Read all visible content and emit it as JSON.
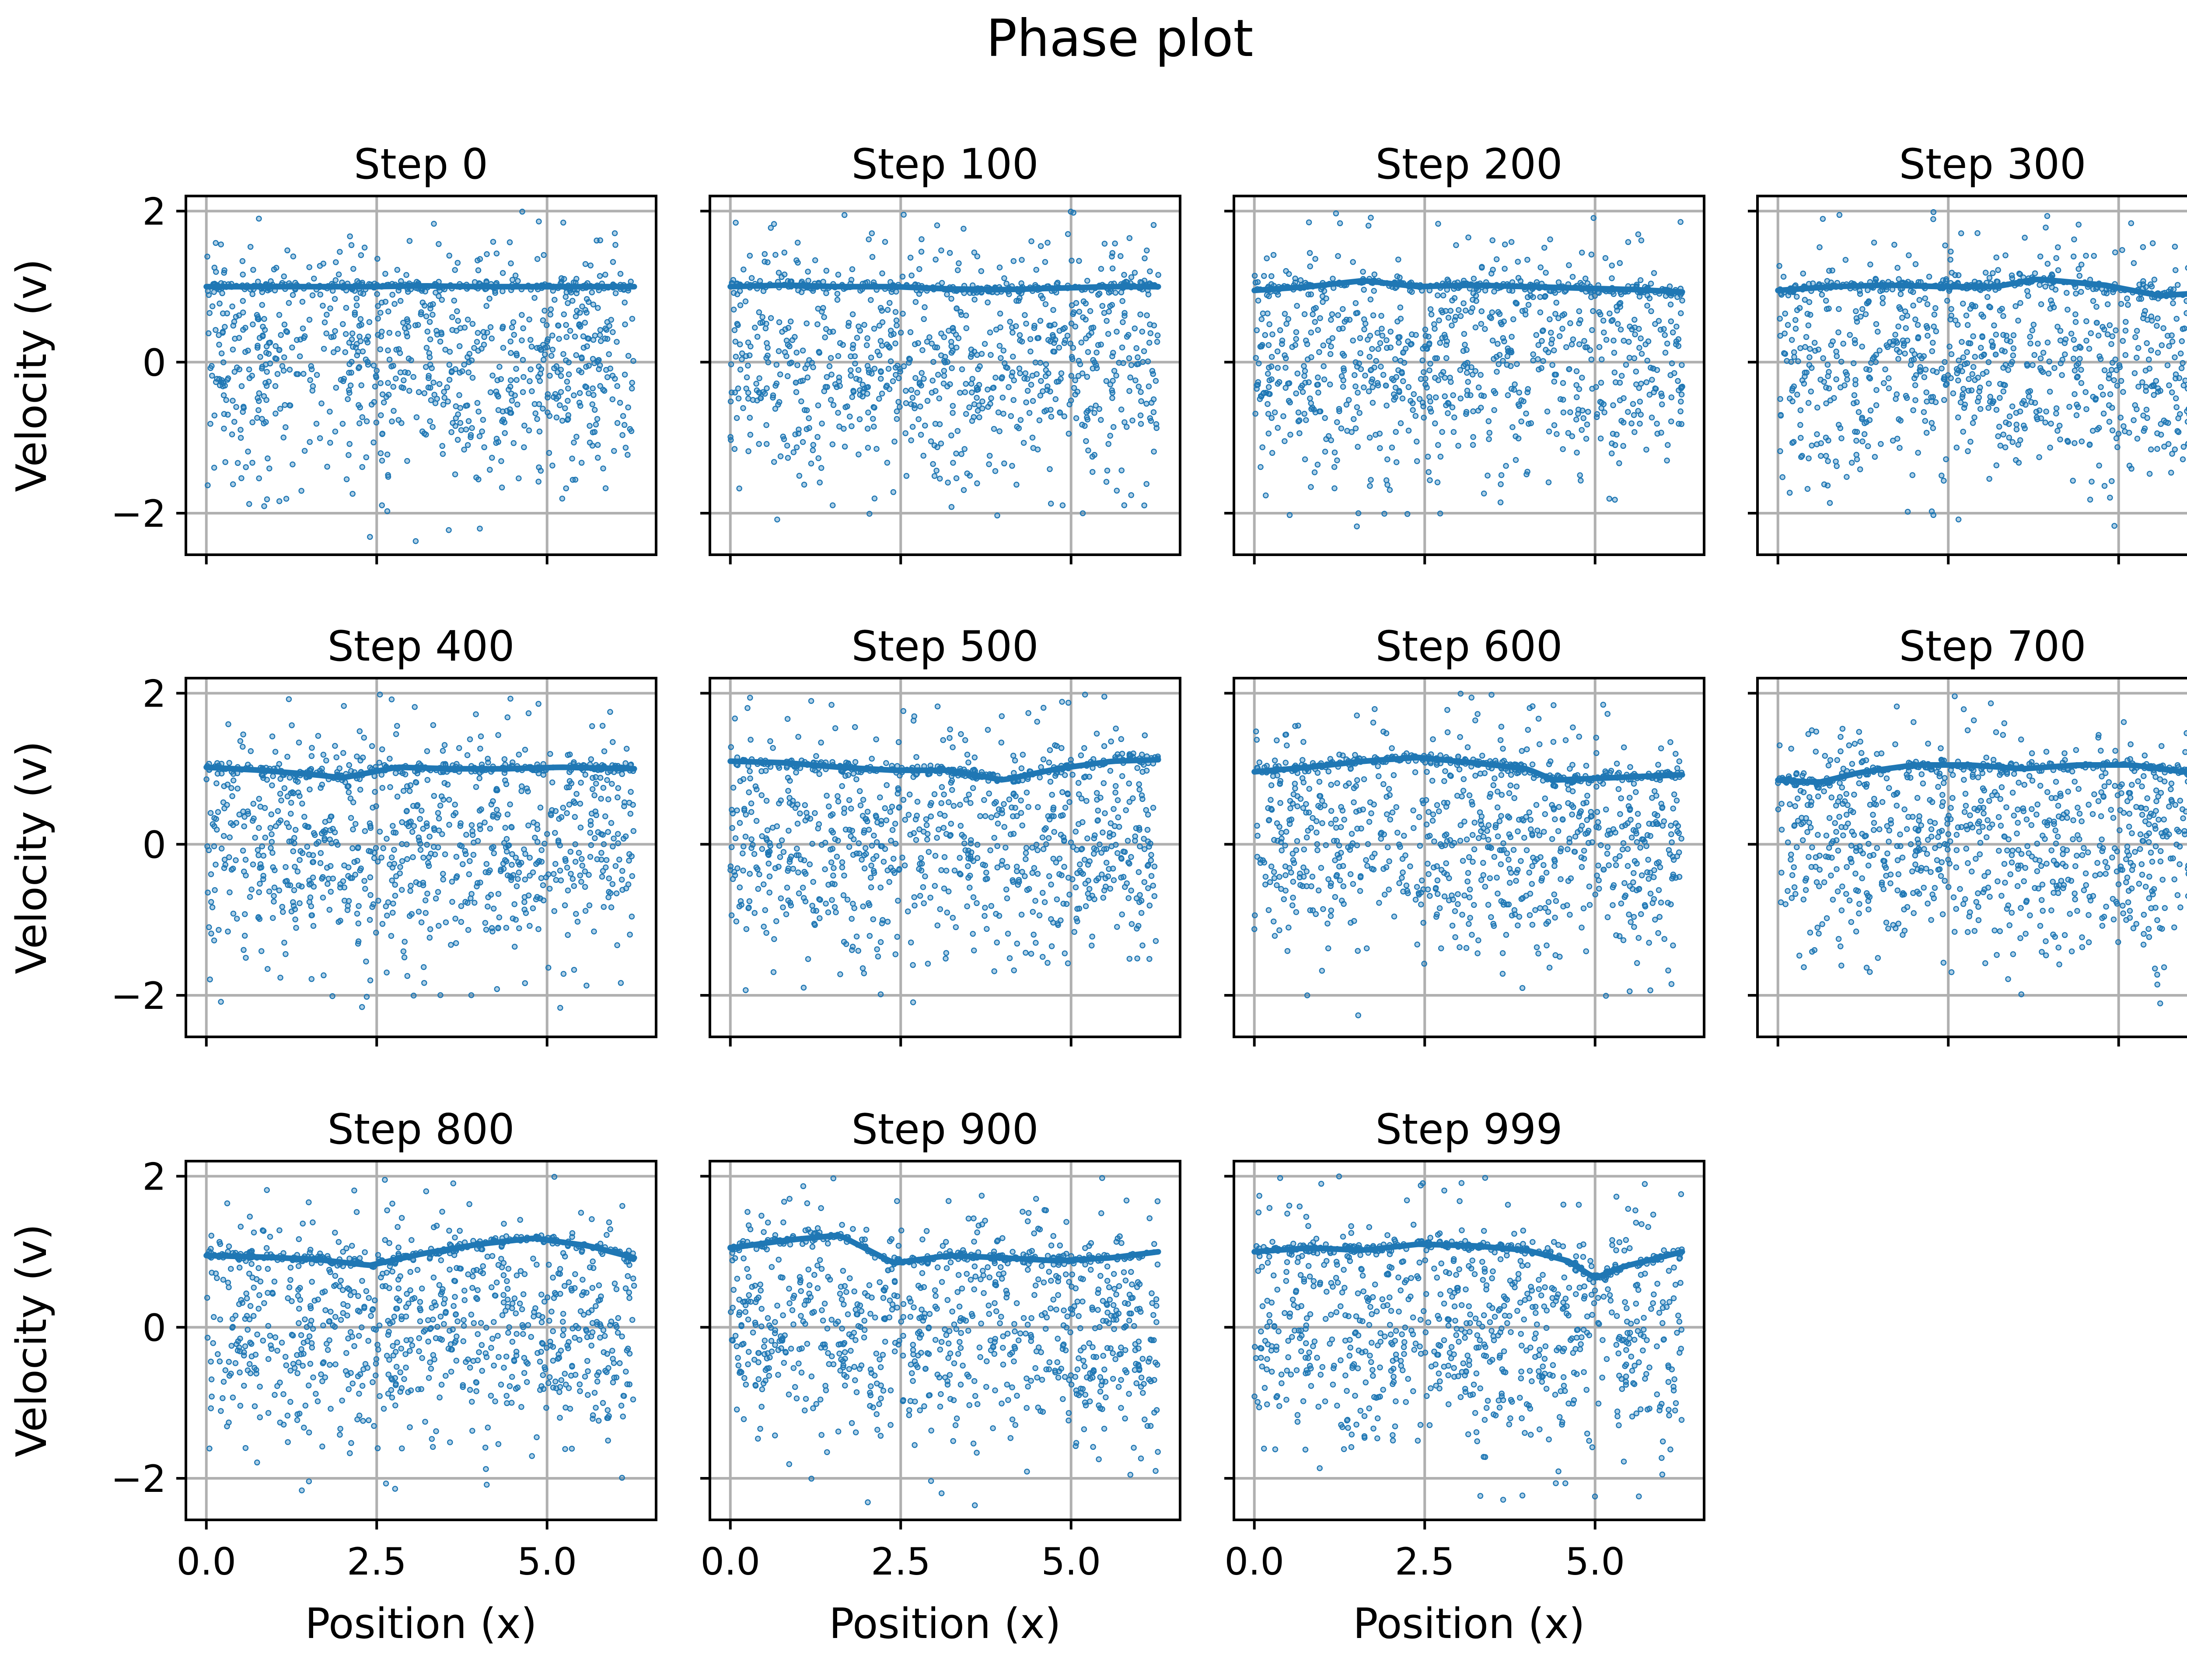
{
  "figure": {
    "title": "Phase plot",
    "colors": {
      "particle": "#1f77b4",
      "mean_line": "#1f77b4",
      "grid": "#b0b0b0",
      "frame": "#000000",
      "background": "#ffffff"
    }
  },
  "chart_data": {
    "type": "scatter",
    "title": "Phase plot",
    "layout": {
      "rows": 3,
      "cols": 4,
      "empty_slots": 1
    },
    "shared_axes": {
      "xlabel": "Position (x)",
      "ylabel": "Velocity (v)",
      "xlim": [
        -0.3,
        6.6
      ],
      "ylim": [
        -2.55,
        2.2
      ],
      "xticks": [
        0.0,
        2.5,
        5.0
      ],
      "xtick_labels": [
        "0.0",
        "2.5",
        "5.0"
      ],
      "yticks": [
        -2,
        0,
        2
      ],
      "ytick_labels": [
        "−2",
        "0",
        "2"
      ],
      "grid": true
    },
    "marker": {
      "style": "small hollow circle",
      "approx_count_per_panel": 1000
    },
    "particle_distribution": {
      "x_range": [
        0.0,
        6.28
      ],
      "beams": [
        {
          "v_center": 0.0,
          "note": "main beam near v ≈ 0"
        },
        {
          "v_center": 1.0,
          "note": "thin beam near v ≈ 1, traced by a thick curve"
        }
      ],
      "v_extent": [
        -2.4,
        2.0
      ]
    },
    "panels": [
      {
        "title": "Step 0",
        "beam_curve": {
          "x": [
            0.0,
            0.8,
            1.6,
            2.4,
            3.2,
            4.0,
            4.8,
            5.6,
            6.28
          ],
          "v": [
            1.0,
            1.0,
            1.0,
            1.0,
            1.01,
            1.0,
            1.0,
            1.0,
            1.0
          ]
        }
      },
      {
        "title": "Step 100",
        "beam_curve": {
          "x": [
            0.0,
            0.8,
            1.6,
            2.4,
            3.2,
            4.0,
            4.8,
            5.6,
            6.28
          ],
          "v": [
            1.0,
            1.02,
            1.0,
            1.0,
            0.97,
            0.96,
            0.98,
            1.0,
            1.0
          ]
        }
      },
      {
        "title": "Step 200",
        "beam_curve": {
          "x": [
            0.0,
            0.8,
            1.6,
            2.4,
            3.2,
            4.0,
            4.8,
            5.6,
            6.28
          ],
          "v": [
            0.95,
            1.0,
            1.08,
            1.0,
            1.02,
            1.0,
            0.98,
            0.96,
            0.93
          ]
        }
      },
      {
        "title": "Step 300",
        "beam_curve": {
          "x": [
            0.0,
            0.8,
            1.6,
            2.4,
            3.2,
            3.8,
            4.8,
            5.6,
            6.28
          ],
          "v": [
            0.95,
            1.0,
            1.02,
            1.0,
            1.0,
            1.1,
            1.02,
            0.88,
            0.92
          ]
        }
      },
      {
        "title": "Step 400",
        "beam_curve": {
          "x": [
            0.0,
            0.8,
            1.6,
            2.0,
            2.8,
            3.6,
            4.4,
            5.2,
            6.28
          ],
          "v": [
            1.02,
            0.98,
            0.92,
            0.88,
            1.02,
            1.0,
            1.0,
            1.02,
            1.0
          ]
        }
      },
      {
        "title": "Step 500",
        "beam_curve": {
          "x": [
            0.0,
            0.8,
            1.6,
            2.4,
            3.2,
            4.0,
            4.8,
            5.6,
            6.28
          ],
          "v": [
            1.1,
            1.08,
            1.02,
            0.98,
            0.98,
            0.85,
            1.0,
            1.1,
            1.12
          ]
        }
      },
      {
        "title": "Step 600",
        "beam_curve": {
          "x": [
            0.0,
            0.8,
            1.6,
            2.4,
            3.2,
            4.0,
            4.4,
            5.2,
            6.28
          ],
          "v": [
            0.96,
            1.02,
            1.1,
            1.15,
            1.08,
            1.0,
            0.85,
            0.88,
            0.92
          ]
        }
      },
      {
        "title": "Step 700",
        "beam_curve": {
          "x": [
            0.0,
            0.6,
            1.2,
            2.0,
            2.8,
            3.6,
            4.4,
            5.2,
            6.28
          ],
          "v": [
            0.85,
            0.82,
            0.95,
            1.05,
            1.05,
            1.0,
            1.05,
            1.05,
            0.92
          ]
        }
      },
      {
        "title": "Step 800",
        "beam_curve": {
          "x": [
            0.0,
            0.8,
            1.6,
            2.4,
            3.2,
            4.0,
            4.8,
            5.6,
            6.28
          ],
          "v": [
            0.95,
            0.93,
            0.9,
            0.82,
            0.98,
            1.1,
            1.18,
            1.08,
            0.92
          ]
        }
      },
      {
        "title": "Step 900",
        "beam_curve": {
          "x": [
            0.0,
            0.8,
            1.6,
            2.4,
            3.2,
            4.0,
            4.8,
            5.6,
            6.28
          ],
          "v": [
            1.05,
            1.15,
            1.22,
            0.85,
            0.95,
            0.92,
            0.88,
            0.92,
            1.0
          ]
        }
      },
      {
        "title": "Step 999",
        "beam_curve": {
          "x": [
            0.0,
            0.8,
            1.6,
            2.4,
            3.2,
            4.0,
            4.6,
            5.0,
            5.4,
            6.28
          ],
          "v": [
            1.0,
            1.05,
            1.02,
            1.1,
            1.08,
            1.02,
            0.88,
            0.65,
            0.8,
            1.0
          ]
        }
      }
    ]
  }
}
